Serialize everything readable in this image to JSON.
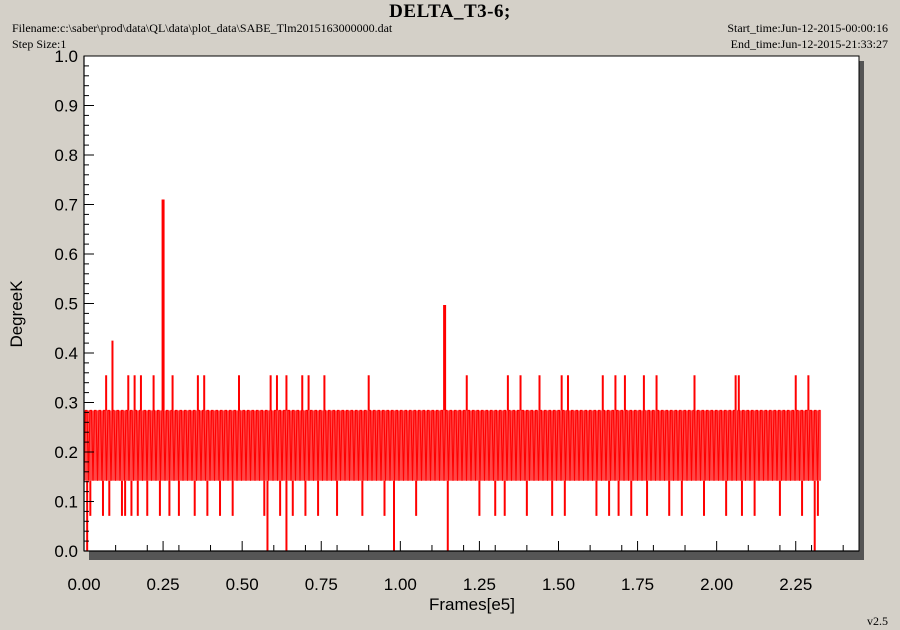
{
  "header": {
    "title": "DELTA_T3-6;",
    "filename": "Filename:c:\\saber\\prod\\data\\QL\\data\\plot_data\\SABE_Tlm2015163000000.dat",
    "step_size": "Step Size:1",
    "start_time": "Start_time:Jun-12-2015-00:00:16",
    "end_time": "End_time:Jun-12-2015-21:33:27"
  },
  "footer": {
    "version": "v2.5"
  },
  "colors": {
    "series": "#ff0000",
    "plot_bg": "#ffffff",
    "frame_bg": "#d4d0c8"
  },
  "chart_data": {
    "type": "line",
    "title": "DELTA_T3-6;",
    "xlabel": "Frames[e5]",
    "ylabel": "DegreeK",
    "xlim": [
      0.0,
      2.45
    ],
    "ylim": [
      0.0,
      1.0
    ],
    "x_ticks": [
      "0.00",
      "0.25",
      "0.50",
      "0.75",
      "1.00",
      "1.25",
      "1.50",
      "1.75",
      "2.00",
      "2.25"
    ],
    "y_ticks": [
      "0.0",
      "0.1",
      "0.2",
      "0.3",
      "0.4",
      "0.5",
      "0.6",
      "0.7",
      "0.8",
      "0.9",
      "1.0"
    ],
    "grid": false,
    "series": [
      {
        "band_levels": [
          0.142,
          0.213,
          0.284
        ],
        "x_range": [
          0.0,
          2.33
        ],
        "spikes": [
          {
            "x": 0.01,
            "y": 0.0
          },
          {
            "x": 0.07,
            "y": 0.355
          },
          {
            "x": 0.09,
            "y": 0.425
          },
          {
            "x": 0.14,
            "y": 0.355
          },
          {
            "x": 0.16,
            "y": 0.355
          },
          {
            "x": 0.18,
            "y": 0.355
          },
          {
            "x": 0.22,
            "y": 0.355
          },
          {
            "x": 0.25,
            "y": 0.71
          },
          {
            "x": 0.28,
            "y": 0.355
          },
          {
            "x": 0.36,
            "y": 0.355
          },
          {
            "x": 0.38,
            "y": 0.355
          },
          {
            "x": 0.49,
            "y": 0.355
          },
          {
            "x": 0.58,
            "y": 0.0
          },
          {
            "x": 0.59,
            "y": 0.355
          },
          {
            "x": 0.61,
            "y": 0.355
          },
          {
            "x": 0.64,
            "y": 0.0
          },
          {
            "x": 0.64,
            "y": 0.355
          },
          {
            "x": 0.69,
            "y": 0.355
          },
          {
            "x": 0.71,
            "y": 0.355
          },
          {
            "x": 0.76,
            "y": 0.355
          },
          {
            "x": 0.9,
            "y": 0.355
          },
          {
            "x": 0.98,
            "y": 0.0
          },
          {
            "x": 1.14,
            "y": 0.497
          },
          {
            "x": 1.15,
            "y": 0.0
          },
          {
            "x": 1.21,
            "y": 0.355
          },
          {
            "x": 1.34,
            "y": 0.355
          },
          {
            "x": 1.38,
            "y": 0.355
          },
          {
            "x": 1.44,
            "y": 0.355
          },
          {
            "x": 1.51,
            "y": 0.355
          },
          {
            "x": 1.53,
            "y": 0.355
          },
          {
            "x": 1.64,
            "y": 0.355
          },
          {
            "x": 1.68,
            "y": 0.355
          },
          {
            "x": 1.71,
            "y": 0.355
          },
          {
            "x": 1.77,
            "y": 0.355
          },
          {
            "x": 1.81,
            "y": 0.355
          },
          {
            "x": 1.93,
            "y": 0.355
          },
          {
            "x": 2.06,
            "y": 0.355
          },
          {
            "x": 2.07,
            "y": 0.355
          },
          {
            "x": 2.25,
            "y": 0.355
          },
          {
            "x": 2.29,
            "y": 0.355
          },
          {
            "x": 2.31,
            "y": 0.0
          }
        ],
        "dips": [
          0.02,
          0.06,
          0.08,
          0.12,
          0.13,
          0.15,
          0.17,
          0.2,
          0.24,
          0.27,
          0.3,
          0.35,
          0.39,
          0.43,
          0.47,
          0.57,
          0.62,
          0.66,
          0.7,
          0.74,
          0.8,
          0.88,
          0.95,
          1.05,
          1.25,
          1.3,
          1.33,
          1.4,
          1.48,
          1.52,
          1.62,
          1.66,
          1.69,
          1.73,
          1.78,
          1.85,
          1.89,
          1.96,
          2.03,
          2.08,
          2.12,
          2.2,
          2.27,
          2.32
        ]
      }
    ]
  }
}
